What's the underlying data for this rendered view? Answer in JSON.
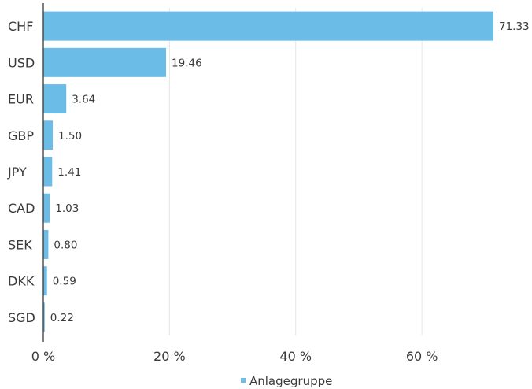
{
  "chart_data": {
    "type": "bar",
    "orientation": "horizontal",
    "categories": [
      "CHF",
      "USD",
      "EUR",
      "GBP",
      "JPY",
      "CAD",
      "SEK",
      "DKK",
      "SGD"
    ],
    "series": [
      {
        "name": "Anlagegruppe",
        "values": [
          71.33,
          19.46,
          3.64,
          1.5,
          1.41,
          1.03,
          0.8,
          0.59,
          0.22
        ],
        "value_labels": [
          "71.33",
          "19.46",
          "3.64",
          "1.50",
          "1.41",
          "1.03",
          "0.80",
          "0.59",
          "0.22"
        ]
      }
    ],
    "x_ticks": [
      {
        "value": 0,
        "label": "0 %"
      },
      {
        "value": 20,
        "label": "20 %"
      },
      {
        "value": 40,
        "label": "40 %"
      },
      {
        "value": 60,
        "label": "60 %"
      }
    ],
    "xlim": [
      0,
      78
    ],
    "title": "",
    "xlabel": "",
    "ylabel": "",
    "grid": "vertical",
    "legend": "bottom-center",
    "colors": {
      "bar": "#6bbde7",
      "axis": "#3a3a3a",
      "grid": "#e6e6e6"
    }
  }
}
